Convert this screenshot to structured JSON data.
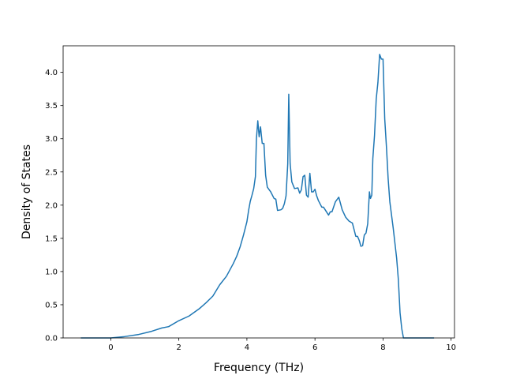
{
  "chart_data": {
    "type": "line",
    "title": "",
    "xlabel": "Frequency (THz)",
    "ylabel": "Density of States",
    "xlim": [
      -1.4,
      10.1
    ],
    "ylim": [
      0,
      4.4
    ],
    "xticks": [
      0,
      2,
      4,
      6,
      8,
      10
    ],
    "yticks": [
      0.0,
      0.5,
      1.0,
      1.5,
      2.0,
      2.5,
      3.0,
      3.5,
      4.0
    ],
    "xtick_labels": [
      "0",
      "2",
      "4",
      "6",
      "8",
      "10"
    ],
    "ytick_labels": [
      "0.0",
      "0.5",
      "1.0",
      "1.5",
      "2.0",
      "2.5",
      "3.0",
      "3.5",
      "4.0"
    ],
    "grid": false,
    "legend": "none",
    "series": [
      {
        "color": "#1f77b4",
        "x": [
          -0.88,
          0.0,
          0.4,
          0.8,
          1.2,
          1.5,
          1.7,
          2.0,
          2.3,
          2.6,
          2.8,
          3.0,
          3.2,
          3.4,
          3.6,
          3.7,
          3.8,
          3.9,
          4.0,
          4.05,
          4.1,
          4.15,
          4.2,
          4.25,
          4.28,
          4.32,
          4.36,
          4.4,
          4.45,
          4.5,
          4.55,
          4.6,
          4.7,
          4.8,
          4.85,
          4.9,
          5.0,
          5.05,
          5.1,
          5.15,
          5.2,
          5.23,
          5.27,
          5.32,
          5.4,
          5.5,
          5.55,
          5.6,
          5.65,
          5.7,
          5.75,
          5.8,
          5.85,
          5.9,
          5.95,
          6.0,
          6.05,
          6.1,
          6.2,
          6.25,
          6.3,
          6.4,
          6.45,
          6.5,
          6.6,
          6.7,
          6.8,
          6.9,
          7.0,
          7.1,
          7.2,
          7.25,
          7.3,
          7.35,
          7.4,
          7.45,
          7.5,
          7.55,
          7.6,
          7.63,
          7.67,
          7.7,
          7.75,
          7.8,
          7.85,
          7.9,
          7.95,
          8.0,
          8.05,
          8.1,
          8.15,
          8.2,
          8.3,
          8.4,
          8.45,
          8.5,
          8.55,
          8.6,
          8.65,
          8.7,
          9.5
        ],
        "y": [
          0.0,
          0.0,
          0.02,
          0.05,
          0.1,
          0.15,
          0.17,
          0.26,
          0.33,
          0.44,
          0.53,
          0.63,
          0.8,
          0.93,
          1.12,
          1.23,
          1.37,
          1.55,
          1.75,
          1.92,
          2.06,
          2.15,
          2.25,
          2.43,
          3.0,
          3.27,
          3.03,
          3.18,
          2.93,
          2.93,
          2.45,
          2.27,
          2.2,
          2.1,
          2.09,
          1.92,
          1.93,
          1.95,
          2.02,
          2.14,
          2.62,
          3.67,
          2.63,
          2.35,
          2.25,
          2.26,
          2.18,
          2.23,
          2.43,
          2.45,
          2.15,
          2.12,
          2.48,
          2.2,
          2.2,
          2.24,
          2.14,
          2.07,
          1.97,
          1.97,
          1.93,
          1.85,
          1.9,
          1.9,
          2.05,
          2.12,
          1.93,
          1.82,
          1.76,
          1.73,
          1.53,
          1.53,
          1.47,
          1.38,
          1.39,
          1.55,
          1.58,
          1.72,
          2.2,
          2.1,
          2.15,
          2.7,
          3.05,
          3.6,
          3.85,
          4.27,
          4.2,
          4.2,
          3.3,
          2.88,
          2.4,
          2.05,
          1.65,
          1.2,
          0.88,
          0.38,
          0.14,
          0.0,
          0.0,
          0.0,
          0.0
        ]
      }
    ]
  }
}
